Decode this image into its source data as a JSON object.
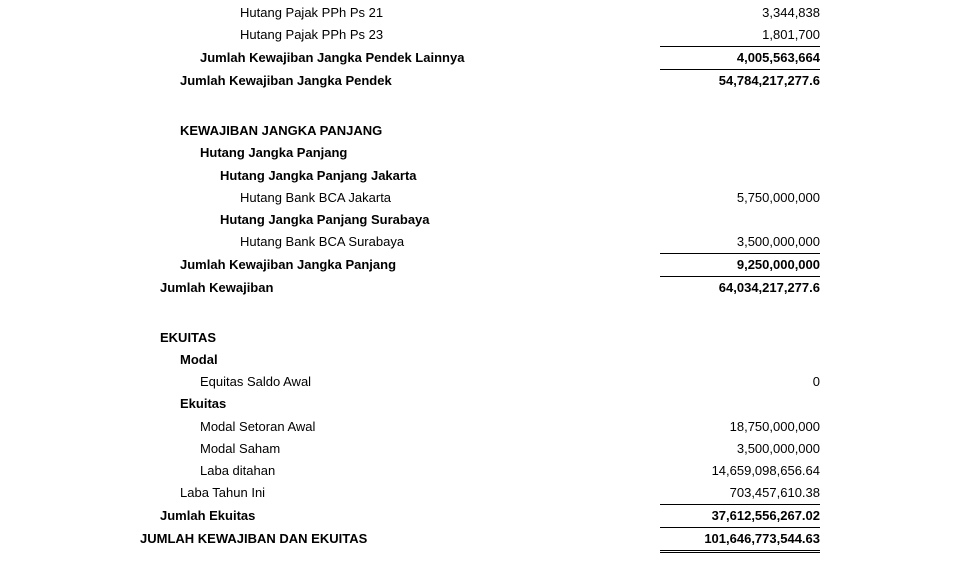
{
  "rows": [
    {
      "label": "Hutang Pajak PPh Ps 21",
      "value": "3,344,838",
      "indent": 5,
      "bold": false,
      "topBorder": false,
      "bottomBorder": false,
      "doubleBottom": false
    },
    {
      "label": "Hutang Pajak PPh Ps 23",
      "value": "1,801,700",
      "indent": 5,
      "bold": false,
      "topBorder": false,
      "bottomBorder": true,
      "doubleBottom": false
    },
    {
      "label": "Jumlah Kewajiban Jangka Pendek Lainnya",
      "value": "4,005,563,664",
      "indent": 3,
      "bold": true,
      "topBorder": false,
      "bottomBorder": true,
      "doubleBottom": false
    },
    {
      "label": "Jumlah Kewajiban Jangka Pendek",
      "value": "54,784,217,277.6",
      "indent": 2,
      "bold": true,
      "topBorder": false,
      "bottomBorder": false,
      "doubleBottom": false
    },
    {
      "gap": true
    },
    {
      "gap": true
    },
    {
      "label": "KEWAJIBAN JANGKA PANJANG",
      "value": "",
      "indent": 2,
      "bold": true,
      "topBorder": false,
      "bottomBorder": false,
      "doubleBottom": false
    },
    {
      "label": "Hutang Jangka Panjang",
      "value": "",
      "indent": 3,
      "bold": true,
      "topBorder": false,
      "bottomBorder": false,
      "doubleBottom": false
    },
    {
      "label": "Hutang Jangka Panjang Jakarta",
      "value": "",
      "indent": 4,
      "bold": true,
      "topBorder": false,
      "bottomBorder": false,
      "doubleBottom": false
    },
    {
      "label": "Hutang Bank BCA Jakarta",
      "value": "5,750,000,000",
      "indent": 5,
      "bold": false,
      "topBorder": false,
      "bottomBorder": false,
      "doubleBottom": false
    },
    {
      "label": "Hutang Jangka Panjang Surabaya",
      "value": "",
      "indent": 4,
      "bold": true,
      "topBorder": false,
      "bottomBorder": false,
      "doubleBottom": false
    },
    {
      "label": "Hutang Bank BCA Surabaya",
      "value": "3,500,000,000",
      "indent": 5,
      "bold": false,
      "topBorder": false,
      "bottomBorder": true,
      "doubleBottom": false
    },
    {
      "label": "Jumlah Kewajiban Jangka Panjang",
      "value": "9,250,000,000",
      "indent": 2,
      "bold": true,
      "topBorder": false,
      "bottomBorder": true,
      "doubleBottom": false
    },
    {
      "label": "Jumlah Kewajiban",
      "value": "64,034,217,277.6",
      "indent": 1,
      "bold": true,
      "topBorder": false,
      "bottomBorder": false,
      "doubleBottom": false
    },
    {
      "gap": true
    },
    {
      "gap": true
    },
    {
      "label": "EKUITAS",
      "value": "",
      "indent": 1,
      "bold": true,
      "topBorder": false,
      "bottomBorder": false,
      "doubleBottom": false
    },
    {
      "label": "Modal",
      "value": "",
      "indent": 2,
      "bold": true,
      "topBorder": false,
      "bottomBorder": false,
      "doubleBottom": false
    },
    {
      "label": "Equitas Saldo Awal",
      "value": "0",
      "indent": 3,
      "bold": false,
      "topBorder": false,
      "bottomBorder": false,
      "doubleBottom": false
    },
    {
      "label": "Ekuitas",
      "value": "",
      "indent": 2,
      "bold": true,
      "topBorder": false,
      "bottomBorder": false,
      "doubleBottom": false
    },
    {
      "label": "Modal Setoran Awal",
      "value": "18,750,000,000",
      "indent": 3,
      "bold": false,
      "topBorder": false,
      "bottomBorder": false,
      "doubleBottom": false
    },
    {
      "label": "Modal Saham",
      "value": "3,500,000,000",
      "indent": 3,
      "bold": false,
      "topBorder": false,
      "bottomBorder": false,
      "doubleBottom": false
    },
    {
      "label": "Laba ditahan",
      "value": "14,659,098,656.64",
      "indent": 3,
      "bold": false,
      "topBorder": false,
      "bottomBorder": false,
      "doubleBottom": false
    },
    {
      "label": "Laba Tahun Ini",
      "value": "703,457,610.38",
      "indent": 2,
      "bold": false,
      "topBorder": false,
      "bottomBorder": true,
      "doubleBottom": false
    },
    {
      "label": "Jumlah Ekuitas",
      "value": "37,612,556,267.02",
      "indent": 1,
      "bold": true,
      "topBorder": false,
      "bottomBorder": true,
      "doubleBottom": false
    },
    {
      "label": "JUMLAH KEWAJIBAN DAN EKUITAS",
      "value": "101,646,773,544.63",
      "indent": 0,
      "bold": true,
      "topBorder": false,
      "bottomBorder": false,
      "doubleBottom": true
    }
  ]
}
